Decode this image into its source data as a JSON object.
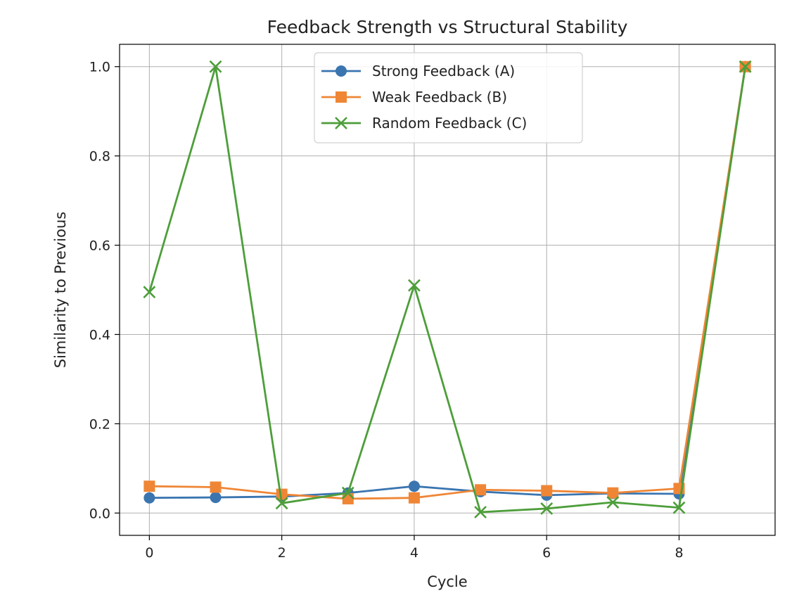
{
  "chart_data": {
    "type": "line",
    "title": "Feedback Strength vs Structural Stability",
    "xlabel": "Cycle",
    "ylabel": "Similarity to Previous",
    "x": [
      0,
      1,
      2,
      3,
      4,
      5,
      6,
      7,
      8,
      9
    ],
    "xlim": [
      -0.45,
      9.45
    ],
    "ylim": [
      -0.05,
      1.05
    ],
    "xticks": [
      0,
      2,
      4,
      6,
      8
    ],
    "yticks": [
      0.0,
      0.2,
      0.4,
      0.6,
      0.8,
      1.0
    ],
    "ytick_labels": [
      "0.0",
      "0.2",
      "0.4",
      "0.6",
      "0.8",
      "1.0"
    ],
    "grid": true,
    "legend_position": "top-center",
    "series": [
      {
        "name": "Strong Feedback (A)",
        "color": "#3a75b0",
        "marker": "circle",
        "values": [
          0.034,
          0.035,
          0.037,
          0.045,
          0.06,
          0.048,
          0.04,
          0.044,
          0.043,
          1.0
        ]
      },
      {
        "name": "Weak Feedback (B)",
        "color": "#ef8636",
        "marker": "square",
        "values": [
          0.06,
          0.058,
          0.042,
          0.032,
          0.034,
          0.052,
          0.05,
          0.045,
          0.055,
          1.0
        ]
      },
      {
        "name": "Random Feedback (C)",
        "color": "#4d9e3a",
        "marker": "x",
        "values": [
          0.495,
          1.0,
          0.022,
          0.045,
          0.51,
          0.002,
          0.01,
          0.024,
          0.012,
          1.0
        ]
      }
    ]
  }
}
